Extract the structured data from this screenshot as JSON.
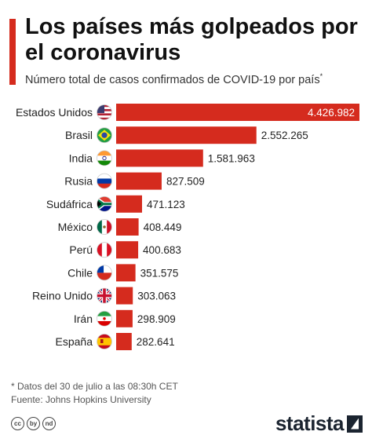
{
  "title": "Los países más golpeados por el coronavirus",
  "subtitle": "Número total de casos confirmados de COVID-19 por país",
  "subtitle_mark": "*",
  "footnote": "* Datos del 30 de julio a las 08:30h CET",
  "source": "Fuente: Johns Hopkins University",
  "brand": "statista",
  "license_icons": [
    "cc",
    "by",
    "nd"
  ],
  "colors": {
    "bar": "#d52b1e",
    "accent": "#d52b1e",
    "text": "#222222"
  },
  "chart_data": {
    "type": "bar",
    "orientation": "horizontal",
    "categories": [
      "Estados Unidos",
      "Brasil",
      "India",
      "Rusia",
      "Sudáfrica",
      "México",
      "Perú",
      "Chile",
      "Reino Unido",
      "Irán",
      "España"
    ],
    "values": [
      4426982,
      2552265,
      1581963,
      827509,
      471123,
      408449,
      400683,
      351575,
      303063,
      298909,
      282641
    ],
    "value_labels": [
      "4.426.982",
      "2.552.265",
      "1.581.963",
      "827.509",
      "471.123",
      "408.449",
      "400.683",
      "351.575",
      "303.063",
      "298.909",
      "282.641"
    ],
    "flags": [
      "us-flag-icon",
      "brazil-flag-icon",
      "india-flag-icon",
      "russia-flag-icon",
      "south-africa-flag-icon",
      "mexico-flag-icon",
      "peru-flag-icon",
      "chile-flag-icon",
      "uk-flag-icon",
      "iran-flag-icon",
      "spain-flag-icon"
    ],
    "xlim": [
      0,
      4426982
    ],
    "grid": false,
    "legend": "none"
  }
}
